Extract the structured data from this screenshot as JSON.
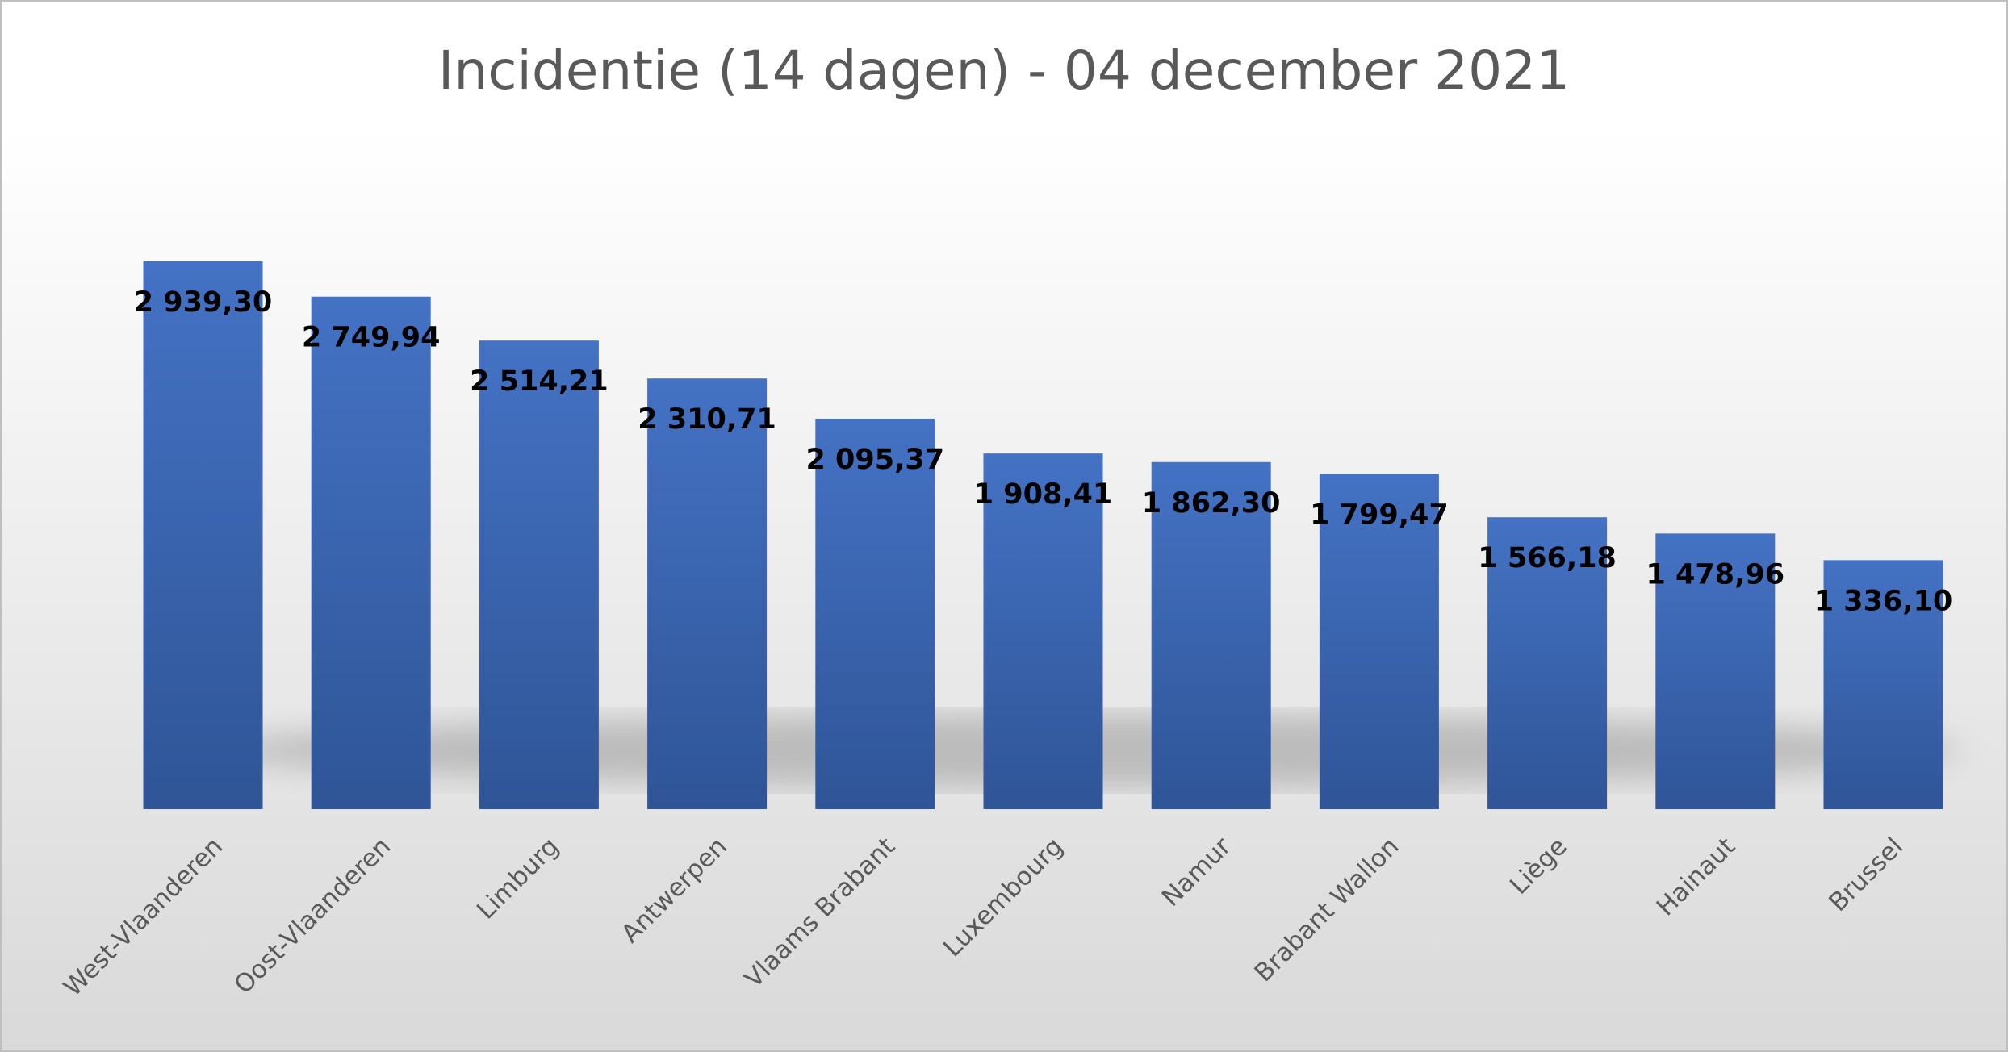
{
  "chart_data": {
    "type": "bar",
    "title": "Incidentie (14 dagen) - 04 december 2021",
    "categories": [
      "West-Vlaanderen",
      "Oost-Vlaanderen",
      "Limburg",
      "Antwerpen",
      "Vlaams Brabant",
      "Luxembourg",
      "Namur",
      "Brabant Wallon",
      "Liège",
      "Hainaut",
      "Brussel"
    ],
    "values": [
      2939.3,
      2749.94,
      2514.21,
      2310.71,
      2095.37,
      1908.41,
      1862.3,
      1799.47,
      1566.18,
      1478.96,
      1336.1
    ],
    "value_labels": [
      "2 939,30",
      "2 749,94",
      "2 514,21",
      "2 310,71",
      "2 095,37",
      "1 908,41",
      "1 862,30",
      "1 799,47",
      "1 566,18",
      "1 478,96",
      "1 336,10"
    ],
    "color": "#4472c4"
  }
}
